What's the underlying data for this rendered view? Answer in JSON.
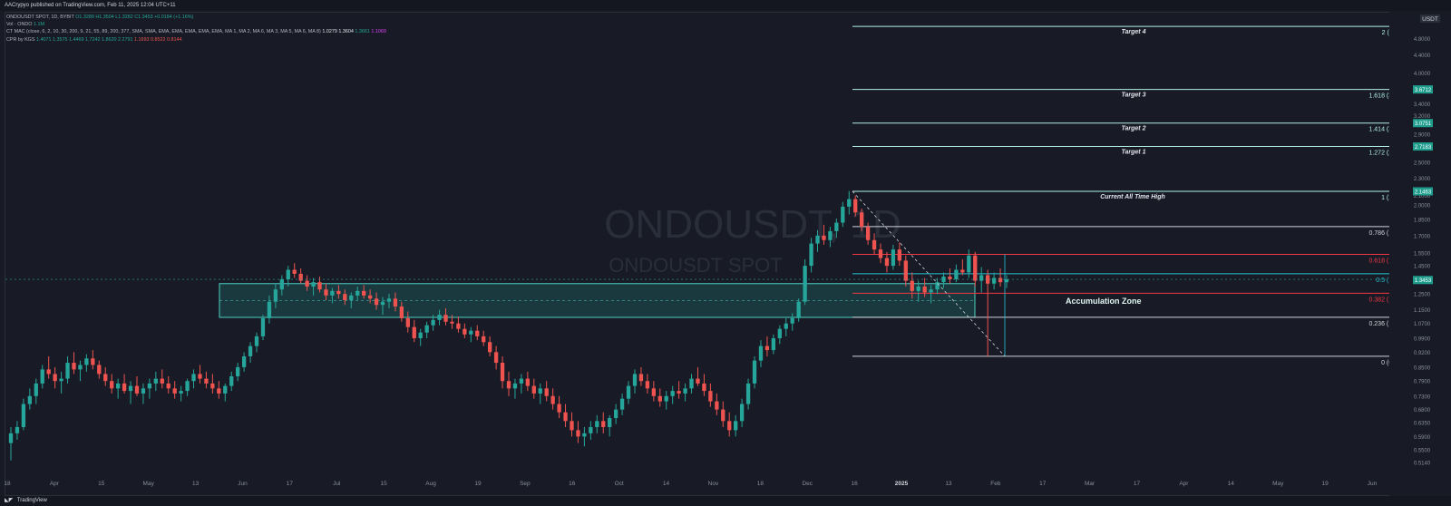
{
  "header": {
    "published": "AACrypyo published on TradingView.com, Feb 11, 2025 12:04 UTC+11"
  },
  "legend": {
    "symbol": "ONDOUSDT SPOT, 1D, BYBIT",
    "open": "O1.3289",
    "high": "H1.3504",
    "low": "L1.3282",
    "close": "C1.3453",
    "change": "+0.0184 (+1.16%)",
    "vol_label": "Vol · ONDO",
    "vol_value": "1.1M",
    "ctmac": "CT MAC (close, 6, 2, 10, 30, 200, 9, 21, 55, 89, 200, 377, SMA, SMA, EMA, EMA, EMA, EMA, EMA, MA 1, MA 2, MA 6, MA 3, MA 5, MA 6, MA 8)",
    "ctmac_values": [
      "1.0279",
      "1.3604",
      "1.3661",
      "1.1069"
    ],
    "cpr": "CPR by KGS",
    "cpr_values": [
      "1.4071",
      "1.3575",
      "1.4469",
      "1.7242",
      "1.8620",
      "2.2791",
      "1.1693",
      "0.8522",
      "0.8144"
    ]
  },
  "footer": {
    "brand": "TradingView"
  },
  "chart_data": {
    "type": "candlestick",
    "title": "",
    "watermark": {
      "main": "ONDOUSDT, 1D",
      "sub": "ONDOUSDT SPOT"
    },
    "currency_label": "USDT",
    "price_axis_ticks": [
      "4.8000",
      "4.4000",
      "4.0000",
      "3.7000",
      "3.4000",
      "3.2000",
      "2.9000",
      "2.7000",
      "2.5000",
      "2.3000",
      "2.1000",
      "2.0000",
      "1.8500",
      "1.7000",
      "1.5500",
      "1.4500",
      "1.3500",
      "1.2500",
      "1.1500",
      "1.0700",
      "0.9900",
      "0.9200",
      "0.8500",
      "0.7900",
      "0.7300",
      "0.6800",
      "0.6350",
      "0.5900",
      "0.5500",
      "0.5140"
    ],
    "time_axis_labels": [
      "18",
      "Apr",
      "15",
      "May",
      "13",
      "Jun",
      "17",
      "Jul",
      "15",
      "Aug",
      "19",
      "Sep",
      "16",
      "Oct",
      "14",
      "Nov",
      "18",
      "Dec",
      "16",
      "2025",
      "13",
      "Feb",
      "17",
      "Mar",
      "17",
      "Apr",
      "14",
      "May",
      "19",
      "Jun"
    ],
    "y_scale": "log",
    "ylim": [
      0.5,
      5.5
    ],
    "fib_levels": [
      {
        "label": "2 (5.1157)",
        "value": 5.1157,
        "name": "Target 4",
        "color": "#b2f0e6"
      },
      {
        "label": "1.618 (3.6712)",
        "value": 3.6712,
        "name": "Target 3",
        "color": "#b2f0e6"
      },
      {
        "label": "1.414 (3.0751)",
        "value": 3.0751,
        "name": "Target 2",
        "color": "#b2f0e6"
      },
      {
        "label": "1.272 (2.7183)",
        "value": 2.7183,
        "name": "Target 1",
        "color": "#b2f0e6"
      },
      {
        "label": "1 (2.1463)",
        "value": 2.1463,
        "name": "Current All Time High",
        "color": "#b2f0e6"
      },
      {
        "label": "0.786 (1.7822)",
        "value": 1.7822,
        "name": "",
        "color": "#d1d4dc"
      },
      {
        "label": "0.618 (1.5402)",
        "value": 1.5402,
        "name": "",
        "color": "#f23645"
      },
      {
        "label": "0.5 (1.3902)",
        "value": 1.3902,
        "name": "",
        "color": "#26c6da"
      },
      {
        "label": "0.382 (1.2547)",
        "value": 1.2547,
        "name": "",
        "color": "#f23645"
      },
      {
        "label": "0.236 (1.1053)",
        "value": 1.1053,
        "name": "",
        "color": "#d1d4dc"
      },
      {
        "label": "0 (0.9004)",
        "value": 0.9004,
        "name": "",
        "color": "#d1d4dc"
      }
    ],
    "price_badges": [
      {
        "label": "3.6712",
        "value": 3.6712
      },
      {
        "label": "3.0751",
        "value": 3.0751
      },
      {
        "label": "2.7183",
        "value": 2.7183
      },
      {
        "label": "2.1463",
        "value": 2.1463
      },
      {
        "label": "1.3453",
        "value": 1.3453
      }
    ],
    "accumulation_zone": {
      "label": "Accumulation Zone",
      "top": 1.32,
      "bottom": 1.105
    },
    "candles": [
      [
        0.57,
        0.62,
        0.52,
        0.6
      ],
      [
        0.6,
        0.64,
        0.58,
        0.62
      ],
      [
        0.62,
        0.72,
        0.61,
        0.7
      ],
      [
        0.7,
        0.76,
        0.68,
        0.73
      ],
      [
        0.73,
        0.8,
        0.7,
        0.78
      ],
      [
        0.78,
        0.86,
        0.76,
        0.84
      ],
      [
        0.84,
        0.9,
        0.8,
        0.82
      ],
      [
        0.82,
        0.85,
        0.76,
        0.79
      ],
      [
        0.79,
        0.83,
        0.74,
        0.8
      ],
      [
        0.8,
        0.9,
        0.78,
        0.87
      ],
      [
        0.87,
        0.92,
        0.82,
        0.84
      ],
      [
        0.84,
        0.88,
        0.79,
        0.86
      ],
      [
        0.86,
        0.91,
        0.83,
        0.89
      ],
      [
        0.89,
        0.93,
        0.84,
        0.86
      ],
      [
        0.86,
        0.88,
        0.8,
        0.82
      ],
      [
        0.82,
        0.85,
        0.77,
        0.79
      ],
      [
        0.79,
        0.82,
        0.74,
        0.76
      ],
      [
        0.76,
        0.8,
        0.72,
        0.78
      ],
      [
        0.78,
        0.82,
        0.74,
        0.75
      ],
      [
        0.75,
        0.79,
        0.7,
        0.77
      ],
      [
        0.77,
        0.81,
        0.73,
        0.74
      ],
      [
        0.74,
        0.78,
        0.7,
        0.76
      ],
      [
        0.76,
        0.8,
        0.72,
        0.78
      ],
      [
        0.78,
        0.83,
        0.75,
        0.8
      ],
      [
        0.8,
        0.84,
        0.76,
        0.78
      ],
      [
        0.78,
        0.81,
        0.74,
        0.76
      ],
      [
        0.76,
        0.79,
        0.72,
        0.74
      ],
      [
        0.74,
        0.77,
        0.71,
        0.75
      ],
      [
        0.75,
        0.8,
        0.73,
        0.79
      ],
      [
        0.79,
        0.84,
        0.76,
        0.82
      ],
      [
        0.82,
        0.86,
        0.78,
        0.8
      ],
      [
        0.8,
        0.83,
        0.76,
        0.78
      ],
      [
        0.78,
        0.82,
        0.74,
        0.76
      ],
      [
        0.76,
        0.79,
        0.72,
        0.74
      ],
      [
        0.74,
        0.78,
        0.71,
        0.77
      ],
      [
        0.77,
        0.83,
        0.75,
        0.81
      ],
      [
        0.81,
        0.87,
        0.79,
        0.85
      ],
      [
        0.85,
        0.92,
        0.83,
        0.9
      ],
      [
        0.9,
        0.97,
        0.87,
        0.95
      ],
      [
        0.95,
        1.02,
        0.92,
        1.0
      ],
      [
        1.0,
        1.12,
        0.98,
        1.1
      ],
      [
        1.1,
        1.24,
        1.07,
        1.2
      ],
      [
        1.2,
        1.32,
        1.16,
        1.28
      ],
      [
        1.28,
        1.38,
        1.24,
        1.35
      ],
      [
        1.35,
        1.45,
        1.3,
        1.42
      ],
      [
        1.42,
        1.47,
        1.36,
        1.39
      ],
      [
        1.39,
        1.43,
        1.32,
        1.34
      ],
      [
        1.34,
        1.38,
        1.27,
        1.3
      ],
      [
        1.3,
        1.36,
        1.24,
        1.33
      ],
      [
        1.33,
        1.37,
        1.26,
        1.28
      ],
      [
        1.28,
        1.32,
        1.21,
        1.24
      ],
      [
        1.24,
        1.29,
        1.19,
        1.27
      ],
      [
        1.27,
        1.31,
        1.22,
        1.25
      ],
      [
        1.25,
        1.28,
        1.18,
        1.21
      ],
      [
        1.21,
        1.26,
        1.16,
        1.24
      ],
      [
        1.24,
        1.3,
        1.21,
        1.27
      ],
      [
        1.27,
        1.31,
        1.22,
        1.24
      ],
      [
        1.24,
        1.28,
        1.19,
        1.22
      ],
      [
        1.22,
        1.26,
        1.15,
        1.18
      ],
      [
        1.18,
        1.23,
        1.12,
        1.2
      ],
      [
        1.2,
        1.25,
        1.16,
        1.22
      ],
      [
        1.22,
        1.26,
        1.14,
        1.17
      ],
      [
        1.17,
        1.2,
        1.08,
        1.1
      ],
      [
        1.1,
        1.14,
        1.02,
        1.05
      ],
      [
        1.05,
        1.09,
        0.97,
        0.99
      ],
      [
        0.99,
        1.04,
        0.95,
        1.02
      ],
      [
        1.02,
        1.08,
        0.99,
        1.06
      ],
      [
        1.06,
        1.12,
        1.03,
        1.09
      ],
      [
        1.09,
        1.15,
        1.06,
        1.12
      ],
      [
        1.12,
        1.16,
        1.06,
        1.08
      ],
      [
        1.08,
        1.12,
        1.04,
        1.07
      ],
      [
        1.07,
        1.11,
        1.02,
        1.04
      ],
      [
        1.04,
        1.07,
        0.99,
        1.01
      ],
      [
        1.01,
        1.05,
        0.97,
        1.03
      ],
      [
        1.03,
        1.06,
        0.98,
        1.0
      ],
      [
        1.0,
        1.03,
        0.95,
        0.97
      ],
      [
        0.97,
        1.0,
        0.9,
        0.92
      ],
      [
        0.92,
        0.95,
        0.84,
        0.87
      ],
      [
        0.87,
        0.9,
        0.76,
        0.79
      ],
      [
        0.79,
        0.83,
        0.73,
        0.76
      ],
      [
        0.76,
        0.8,
        0.72,
        0.78
      ],
      [
        0.78,
        0.82,
        0.74,
        0.8
      ],
      [
        0.8,
        0.83,
        0.75,
        0.77
      ],
      [
        0.77,
        0.8,
        0.72,
        0.74
      ],
      [
        0.74,
        0.78,
        0.7,
        0.76
      ],
      [
        0.76,
        0.79,
        0.71,
        0.73
      ],
      [
        0.73,
        0.76,
        0.68,
        0.7
      ],
      [
        0.7,
        0.73,
        0.65,
        0.67
      ],
      [
        0.67,
        0.7,
        0.62,
        0.64
      ],
      [
        0.64,
        0.67,
        0.59,
        0.61
      ],
      [
        0.61,
        0.64,
        0.57,
        0.59
      ],
      [
        0.59,
        0.62,
        0.56,
        0.6
      ],
      [
        0.6,
        0.64,
        0.58,
        0.62
      ],
      [
        0.62,
        0.66,
        0.6,
        0.64
      ],
      [
        0.64,
        0.67,
        0.6,
        0.62
      ],
      [
        0.62,
        0.66,
        0.59,
        0.65
      ],
      [
        0.65,
        0.7,
        0.63,
        0.68
      ],
      [
        0.68,
        0.74,
        0.66,
        0.72
      ],
      [
        0.72,
        0.79,
        0.7,
        0.77
      ],
      [
        0.77,
        0.84,
        0.74,
        0.82
      ],
      [
        0.82,
        0.85,
        0.77,
        0.79
      ],
      [
        0.79,
        0.82,
        0.74,
        0.76
      ],
      [
        0.76,
        0.79,
        0.71,
        0.73
      ],
      [
        0.73,
        0.76,
        0.69,
        0.71
      ],
      [
        0.71,
        0.75,
        0.68,
        0.73
      ],
      [
        0.73,
        0.77,
        0.7,
        0.75
      ],
      [
        0.75,
        0.79,
        0.72,
        0.74
      ],
      [
        0.74,
        0.78,
        0.71,
        0.76
      ],
      [
        0.76,
        0.82,
        0.74,
        0.8
      ],
      [
        0.8,
        0.85,
        0.77,
        0.78
      ],
      [
        0.78,
        0.82,
        0.73,
        0.75
      ],
      [
        0.75,
        0.78,
        0.69,
        0.71
      ],
      [
        0.71,
        0.74,
        0.66,
        0.68
      ],
      [
        0.68,
        0.71,
        0.62,
        0.64
      ],
      [
        0.64,
        0.67,
        0.59,
        0.61
      ],
      [
        0.61,
        0.66,
        0.59,
        0.64
      ],
      [
        0.64,
        0.72,
        0.62,
        0.7
      ],
      [
        0.7,
        0.8,
        0.68,
        0.78
      ],
      [
        0.78,
        0.9,
        0.76,
        0.88
      ],
      [
        0.88,
        0.98,
        0.85,
        0.95
      ],
      [
        0.95,
        1.0,
        0.9,
        0.93
      ],
      [
        0.93,
        1.01,
        0.91,
        0.99
      ],
      [
        0.99,
        1.06,
        0.96,
        1.04
      ],
      [
        1.04,
        1.1,
        1.0,
        1.07
      ],
      [
        1.07,
        1.13,
        1.03,
        1.1
      ],
      [
        1.1,
        1.22,
        1.08,
        1.2
      ],
      [
        1.2,
        1.5,
        1.18,
        1.45
      ],
      [
        1.45,
        1.68,
        1.4,
        1.63
      ],
      [
        1.63,
        1.75,
        1.56,
        1.7
      ],
      [
        1.7,
        1.8,
        1.62,
        1.66
      ],
      [
        1.66,
        1.78,
        1.6,
        1.74
      ],
      [
        1.74,
        1.86,
        1.68,
        1.82
      ],
      [
        1.82,
        2.03,
        1.78,
        1.98
      ],
      [
        1.98,
        2.15,
        1.9,
        2.06
      ],
      [
        2.06,
        2.1,
        1.88,
        1.92
      ],
      [
        1.92,
        1.96,
        1.74,
        1.78
      ],
      [
        1.78,
        1.82,
        1.62,
        1.66
      ],
      [
        1.66,
        1.72,
        1.54,
        1.58
      ],
      [
        1.58,
        1.63,
        1.47,
        1.51
      ],
      [
        1.51,
        1.56,
        1.4,
        1.45
      ],
      [
        1.45,
        1.62,
        1.42,
        1.58
      ],
      [
        1.58,
        1.64,
        1.45,
        1.49
      ],
      [
        1.49,
        1.53,
        1.3,
        1.34
      ],
      [
        1.34,
        1.4,
        1.22,
        1.27
      ],
      [
        1.27,
        1.34,
        1.2,
        1.3
      ],
      [
        1.3,
        1.36,
        1.23,
        1.26
      ],
      [
        1.26,
        1.31,
        1.19,
        1.28
      ],
      [
        1.28,
        1.36,
        1.25,
        1.33
      ],
      [
        1.33,
        1.4,
        1.29,
        1.37
      ],
      [
        1.37,
        1.43,
        1.32,
        1.35
      ],
      [
        1.35,
        1.46,
        1.33,
        1.42
      ],
      [
        1.42,
        1.5,
        1.38,
        1.4
      ],
      [
        1.4,
        1.58,
        1.36,
        1.53
      ],
      [
        1.53,
        1.56,
        1.3,
        1.34
      ],
      [
        1.34,
        1.44,
        1.26,
        1.38
      ],
      [
        1.38,
        1.42,
        0.9,
        1.32
      ],
      [
        1.32,
        1.4,
        1.28,
        1.36
      ],
      [
        1.36,
        1.43,
        1.3,
        1.33
      ],
      [
        1.33,
        1.38,
        1.29,
        1.35
      ]
    ]
  }
}
